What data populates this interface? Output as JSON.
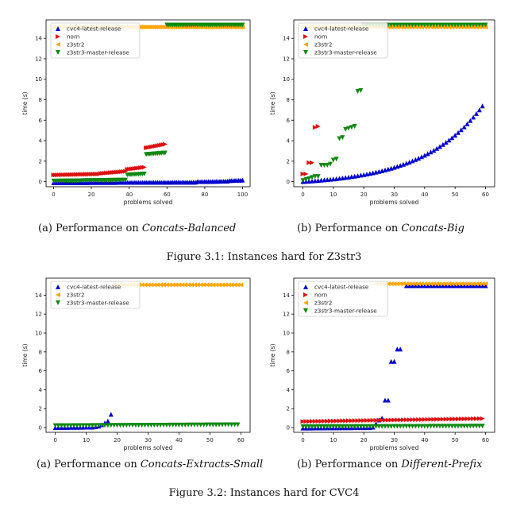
{
  "colors": {
    "cvc4": "#0000cc",
    "norn": "#dd1111",
    "z3str2": "#ffa500",
    "z3str3": "#118811",
    "axis": "#000000",
    "legend_border": "#cccccc"
  },
  "figures": [
    {
      "caption": "Figure 3.1: Instances hard for Z3str3",
      "subcaptions": [
        {
          "prefix": "(a) Performance on",
          "name": "Concats-Balanced"
        },
        {
          "prefix": "(b) Performance on",
          "name": "Concats-Big"
        }
      ]
    },
    {
      "caption": "Figure 3.2: Instances hard for CVC4",
      "subcaptions": [
        {
          "prefix": "(a) Performance on",
          "name": "Concats-Extracts-Small"
        },
        {
          "prefix": "(b) Performance on",
          "name": "Different-Prefix"
        }
      ]
    }
  ],
  "chart_data": [
    {
      "type": "scatter",
      "xlabel": "problems solved",
      "ylabel": "time (s)",
      "xlim": [
        -4,
        104
      ],
      "ylim": [
        -0.5,
        15.8
      ],
      "xticks": [
        0,
        20,
        40,
        60,
        80,
        100
      ],
      "yticks": [
        0,
        2,
        4,
        6,
        8,
        10,
        12,
        14
      ],
      "legend": "top-left",
      "series": [
        {
          "name": "cvc4-latest-release",
          "marker": "triangle-up",
          "color_key": "cvc4",
          "segments": [
            [
              0,
              75,
              -0.1,
              -0.05
            ],
            [
              76,
              92,
              0.0,
              0.05
            ],
            [
              93,
              100,
              0.1,
              0.15
            ]
          ]
        },
        {
          "name": "norn",
          "marker": "triangle-right",
          "color_key": "norn",
          "segments": [
            [
              0,
              24,
              0.65,
              0.75
            ],
            [
              25,
              38,
              0.8,
              1.0
            ],
            [
              39,
              48,
              1.2,
              1.4
            ],
            [
              49,
              59,
              3.3,
              3.65
            ]
          ]
        },
        {
          "name": "z3str2",
          "marker": "triangle-left",
          "color_key": "z3str2",
          "segments": [
            [
              0,
              100,
              15.1,
              15.1
            ]
          ]
        },
        {
          "name": "z3str3-master-release",
          "marker": "triangle-down",
          "color_key": "z3str3",
          "segments": [
            [
              0,
              38,
              0.05,
              0.15
            ],
            [
              39,
              48,
              0.65,
              0.75
            ],
            [
              49,
              59,
              2.65,
              2.8
            ],
            [
              60,
              100,
              15.3,
              15.3
            ]
          ]
        }
      ]
    },
    {
      "type": "scatter",
      "xlabel": "problems solved",
      "ylabel": "time (s)",
      "xlim": [
        -3,
        63
      ],
      "ylim": [
        -0.5,
        15.8
      ],
      "xticks": [
        0,
        10,
        20,
        30,
        40,
        50,
        60
      ],
      "yticks": [
        0,
        2,
        4,
        6,
        8,
        10,
        12,
        14
      ],
      "legend": "top-left",
      "series": [
        {
          "name": "cvc4-latest-release",
          "marker": "triangle-up",
          "color_key": "cvc4",
          "segments": [
            [
              0,
              59,
              0.0,
              7.4,
              "exp"
            ]
          ]
        },
        {
          "name": "norn",
          "marker": "triangle-right",
          "color_key": "norn",
          "points": [
            [
              0,
              0.75
            ],
            [
              1,
              0.75
            ],
            [
              2,
              1.85
            ],
            [
              3,
              1.85
            ],
            [
              4,
              5.3
            ],
            [
              5,
              5.4
            ]
          ]
        },
        {
          "name": "z3str2",
          "marker": "triangle-left",
          "color_key": "z3str2",
          "segments": [
            [
              0,
              60,
              15.1,
              15.1
            ]
          ]
        },
        {
          "name": "z3str3-master-release",
          "marker": "triangle-down",
          "color_key": "z3str3",
          "points": [
            [
              0,
              0.1
            ],
            [
              1,
              0.2
            ],
            [
              2,
              0.3
            ],
            [
              3,
              0.4
            ],
            [
              4,
              0.5
            ],
            [
              5,
              0.5
            ],
            [
              6,
              1.6
            ],
            [
              7,
              1.6
            ],
            [
              8,
              1.6
            ],
            [
              9,
              1.7
            ],
            [
              10,
              2.1
            ],
            [
              11,
              2.2
            ],
            [
              12,
              4.2
            ],
            [
              13,
              4.3
            ],
            [
              14,
              5.1
            ],
            [
              15,
              5.2
            ],
            [
              16,
              5.3
            ],
            [
              17,
              5.4
            ],
            [
              18,
              8.8
            ],
            [
              19,
              8.9
            ]
          ],
          "segments": [
            [
              20,
              60,
              15.3,
              15.3
            ]
          ]
        }
      ]
    },
    {
      "type": "scatter",
      "xlabel": "problems solved",
      "ylabel": "time (s)",
      "xlim": [
        -3,
        63
      ],
      "ylim": [
        -0.5,
        15.8
      ],
      "xticks": [
        0,
        10,
        20,
        30,
        40,
        50,
        60
      ],
      "yticks": [
        0,
        2,
        4,
        6,
        8,
        10,
        12,
        14
      ],
      "legend": "top-left",
      "series": [
        {
          "name": "cvc4-latest-release",
          "marker": "triangle-up",
          "color_key": "cvc4",
          "segments": [
            [
              0,
              12,
              0.0,
              0.05
            ]
          ],
          "points": [
            [
              13,
              0.1
            ],
            [
              14,
              0.15
            ],
            [
              15,
              0.3
            ],
            [
              16,
              0.5
            ],
            [
              17,
              0.7
            ],
            [
              18,
              1.4
            ]
          ]
        },
        {
          "name": "z3str2",
          "marker": "triangle-left",
          "color_key": "z3str2",
          "segments": [
            [
              19,
              60,
              15.1,
              15.1
            ]
          ]
        },
        {
          "name": "z3str3-master-release",
          "marker": "triangle-down",
          "color_key": "z3str3",
          "segments": [
            [
              0,
              59,
              0.2,
              0.3
            ]
          ]
        }
      ]
    },
    {
      "type": "scatter",
      "xlabel": "problems solved",
      "ylabel": "time (s)",
      "xlim": [
        -3,
        63
      ],
      "ylim": [
        -0.5,
        15.8
      ],
      "xticks": [
        0,
        10,
        20,
        30,
        40,
        50,
        60
      ],
      "yticks": [
        0,
        2,
        4,
        6,
        8,
        10,
        12,
        14
      ],
      "legend": "top-left",
      "series": [
        {
          "name": "cvc4-latest-release",
          "marker": "triangle-up",
          "color_key": "cvc4",
          "segments": [
            [
              0,
              22,
              -0.05,
              0.0
            ],
            [
              34,
              60,
              15.0,
              15.0
            ]
          ],
          "points": [
            [
              23,
              0.05
            ],
            [
              24,
              0.4
            ],
            [
              25,
              0.8
            ],
            [
              26,
              1.0
            ],
            [
              27,
              2.9
            ],
            [
              28,
              2.9
            ],
            [
              29,
              7.0
            ],
            [
              30,
              7.0
            ],
            [
              31,
              8.3
            ],
            [
              32,
              8.3
            ]
          ]
        },
        {
          "name": "norn",
          "marker": "triangle-right",
          "color_key": "norn",
          "segments": [
            [
              0,
              59,
              0.65,
              0.95
            ]
          ]
        },
        {
          "name": "z3str2",
          "marker": "triangle-left",
          "color_key": "z3str2",
          "segments": [
            [
              24,
              60,
              15.2,
              15.2
            ]
          ]
        },
        {
          "name": "z3str3-master-release",
          "marker": "triangle-down",
          "color_key": "z3str3",
          "segments": [
            [
              0,
              59,
              0.1,
              0.15
            ]
          ]
        }
      ]
    }
  ]
}
